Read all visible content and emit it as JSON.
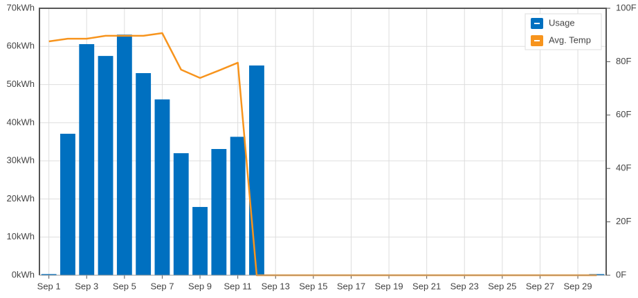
{
  "chart_data": {
    "type": "bar",
    "categories": [
      "Sep 1",
      null,
      "Sep 3",
      null,
      "Sep 5",
      null,
      "Sep 7",
      null,
      "Sep 9",
      null,
      "Sep 11",
      null,
      "Sep 13",
      null,
      "Sep 15",
      null,
      "Sep 17",
      null,
      "Sep 19",
      null,
      "Sep 21",
      null,
      "Sep 23",
      null,
      "Sep 25",
      null,
      "Sep 27",
      null,
      "Sep 29",
      null
    ],
    "series": [
      {
        "name": "Usage",
        "type": "bar",
        "color": "#0070c0",
        "values": [
          0.3,
          37.1,
          60.6,
          57.5,
          63.1,
          53,
          46.1,
          32,
          17.9,
          33.1,
          36.3,
          55,
          0,
          0,
          0,
          0,
          0,
          0,
          0,
          0,
          0,
          0,
          0,
          0,
          0,
          0,
          0,
          0,
          0,
          0.3
        ]
      },
      {
        "name": "Avg. Temp",
        "type": "line",
        "axis": "y2",
        "color": "#f7941d",
        "values": [
          87.6,
          88.6,
          88.6,
          89.7,
          89.7,
          89.7,
          90.7,
          77,
          73.9,
          76.7,
          79.6,
          0,
          0,
          0,
          0,
          0,
          0,
          0,
          0,
          0,
          0,
          0,
          0,
          0,
          0,
          0,
          0,
          0,
          0,
          0
        ]
      }
    ],
    "ylim": [
      0,
      70
    ],
    "yticks": [
      {
        "value": 0,
        "label": "0kWh"
      },
      {
        "value": 10,
        "label": "10kWh"
      },
      {
        "value": 20,
        "label": "20kWh"
      },
      {
        "value": 30,
        "label": "30kWh"
      },
      {
        "value": 40,
        "label": "40kWh"
      },
      {
        "value": 50,
        "label": "50kWh"
      },
      {
        "value": 60,
        "label": "60kWh"
      },
      {
        "value": 70,
        "label": "70kWh"
      }
    ],
    "y2lim": [
      0,
      100
    ],
    "y2ticks": [
      {
        "value": 0,
        "label": "0F"
      },
      {
        "value": 20,
        "label": "20F"
      },
      {
        "value": 40,
        "label": "40F"
      },
      {
        "value": 60,
        "label": "60F"
      },
      {
        "value": 80,
        "label": "80F"
      },
      {
        "value": 100,
        "label": "100F"
      }
    ],
    "grid": true,
    "legend": "top-right"
  }
}
